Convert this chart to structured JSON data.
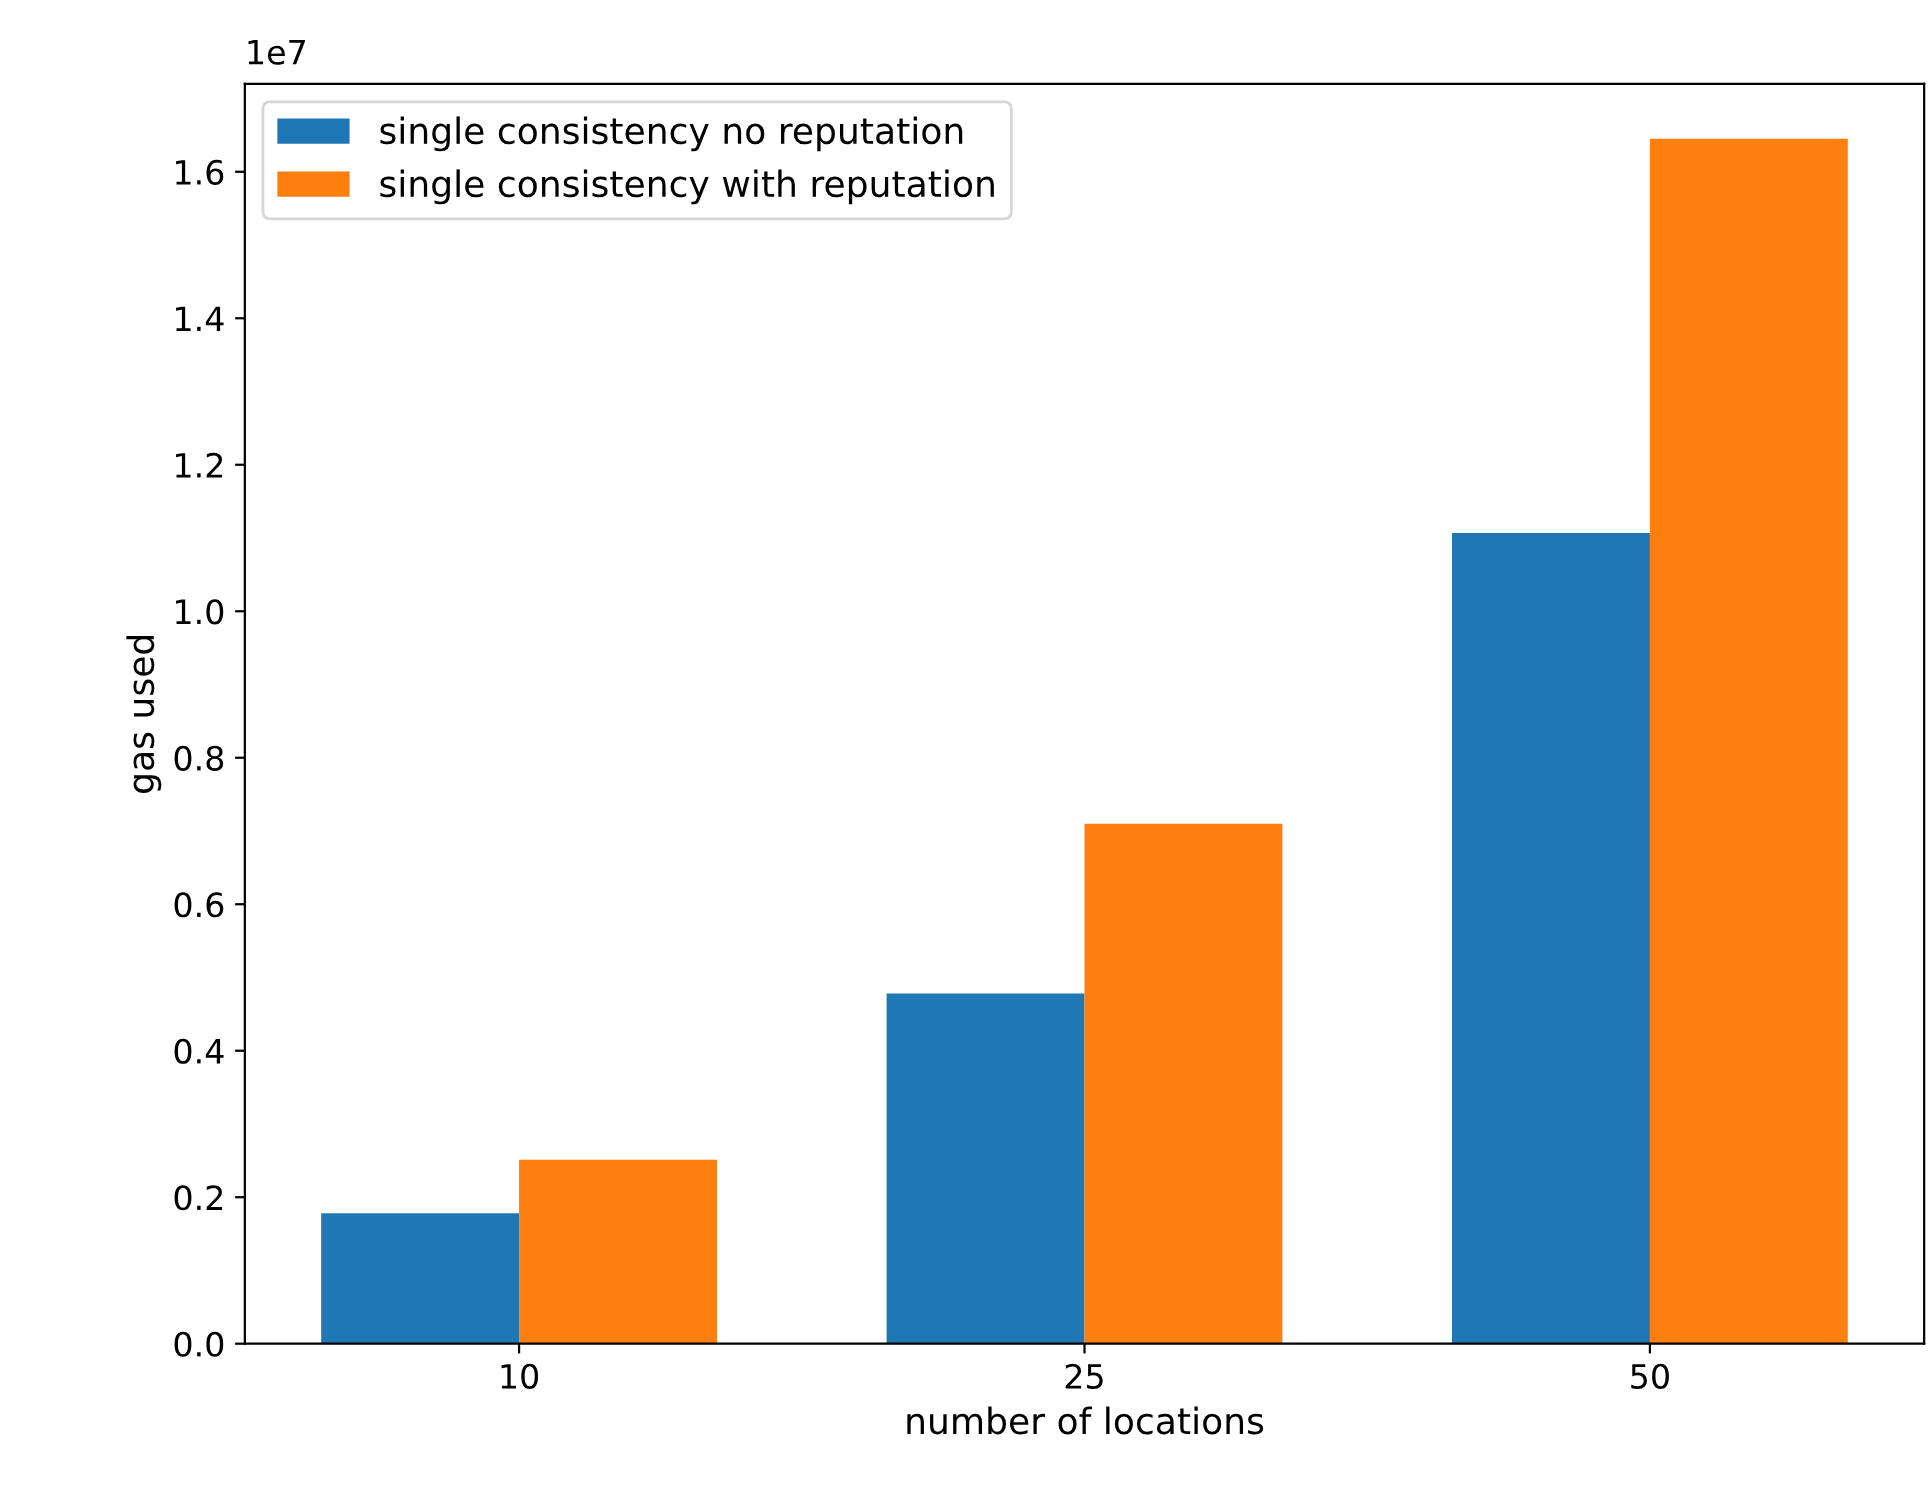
{
  "chart_data": {
    "type": "bar",
    "xlabel": "number of locations",
    "ylabel": "gas used",
    "categories": [
      "10",
      "25",
      "50"
    ],
    "series": [
      {
        "name": "single consistency no reputation",
        "color": "#1f77b4",
        "values": [
          0.178,
          0.478,
          1.107
        ]
      },
      {
        "name": "single consistency with reputation",
        "color": "#ff7f0e",
        "values": [
          0.251,
          0.71,
          1.645
        ]
      }
    ],
    "ylim": [
      0,
      1.72
    ],
    "yticks": [
      {
        "value": 0,
        "label": "0.0"
      },
      {
        "value": 0.2,
        "label": "0.2"
      },
      {
        "value": 0.4,
        "label": "0.4"
      },
      {
        "value": 0.6,
        "label": "0.6"
      },
      {
        "value": 0.8,
        "label": "0.8"
      },
      {
        "value": 1,
        "label": "1.0"
      },
      {
        "value": 1.2,
        "label": "1.2"
      },
      {
        "value": 1.4,
        "label": "1.4"
      },
      {
        "value": 1.6,
        "label": "1.6"
      }
    ],
    "annotations": [
      "1e7"
    ],
    "legend": "top left",
    "grid": false
  }
}
